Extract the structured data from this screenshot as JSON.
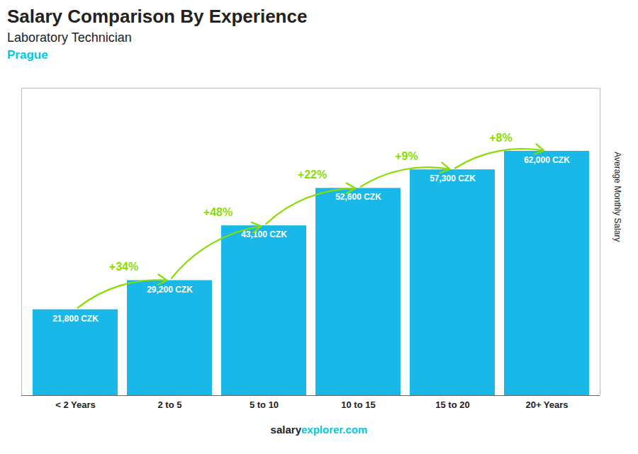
{
  "chart_data": {
    "type": "bar",
    "title": "Salary Comparison By Experience",
    "subtitle": "Laboratory Technician",
    "ylabel": "Average Monthly Salary",
    "categories": [
      "< 2 Years",
      "2 to 5",
      "5 to 10",
      "10 to 15",
      "15 to 20",
      "20+ Years"
    ],
    "values": [
      21800,
      29200,
      43100,
      52600,
      57300,
      62000
    ],
    "value_labels": [
      "21,800 CZK",
      "29,200 CZK",
      "43,100 CZK",
      "52,600 CZK",
      "57,300 CZK",
      "62,000 CZK"
    ],
    "data_labels": true,
    "color": "#1ab8e8",
    "ylim": [
      0,
      78000
    ],
    "tick_labels": "x",
    "grid": false,
    "annotations": [
      {
        "text": "Prague",
        "color": "#00c8e0"
      },
      {
        "text": "+34%",
        "from": "< 2 Years",
        "to": "2 to 5",
        "color": "#88dd00"
      },
      {
        "text": "+48%",
        "from": "2 to 5",
        "to": "5 to 10",
        "color": "#88dd00"
      },
      {
        "text": "+22%",
        "from": "5 to 10",
        "to": "10 to 15",
        "color": "#88dd00"
      },
      {
        "text": "+9%",
        "from": "10 to 15",
        "to": "15 to 20",
        "color": "#88dd00"
      },
      {
        "text": "+8%",
        "from": "15 to 20",
        "to": "20+ Years",
        "color": "#88dd00"
      }
    ],
    "caption": [
      {
        "text": "salary"
      },
      {
        "text": "explorer.com",
        "color": "#00c8e0"
      }
    ]
  }
}
